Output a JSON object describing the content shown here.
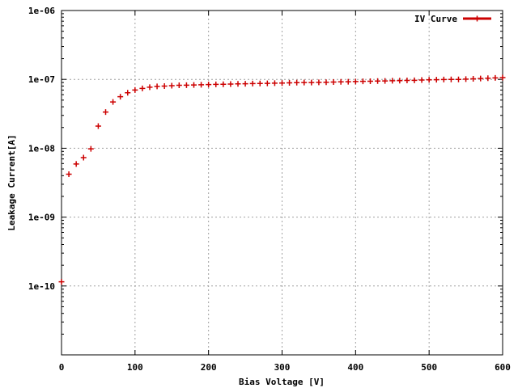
{
  "chart_data": {
    "type": "scatter",
    "title": "",
    "xlabel": "Bias Voltage [V]",
    "ylabel": "Leakage Current[A]",
    "xlim": [
      0,
      600
    ],
    "ylim": [
      1e-11,
      1e-06
    ],
    "yscale": "log",
    "grid": true,
    "legend_position": "top-right",
    "x_ticks": [
      0,
      100,
      200,
      300,
      400,
      500,
      600
    ],
    "x_tick_labels": [
      "0",
      "100",
      "200",
      "300",
      "400",
      "500",
      "600"
    ],
    "y_ticks": [
      1e-10,
      1e-09,
      1e-08,
      1e-07,
      1e-06
    ],
    "y_tick_labels": [
      "1e-10",
      "1e-09",
      "1e-08",
      "1e-07",
      "1e-06"
    ],
    "series": [
      {
        "name": "IV Curve",
        "color": "#cc0000",
        "marker": "plus",
        "x": [
          0,
          10,
          20,
          30,
          40,
          50,
          60,
          70,
          80,
          90,
          100,
          110,
          120,
          130,
          140,
          150,
          160,
          170,
          180,
          190,
          200,
          210,
          220,
          230,
          240,
          250,
          260,
          270,
          280,
          290,
          300,
          310,
          320,
          330,
          340,
          350,
          360,
          370,
          380,
          390,
          400,
          410,
          420,
          430,
          440,
          450,
          460,
          470,
          480,
          490,
          500,
          510,
          520,
          530,
          540,
          550,
          560,
          570,
          580,
          590,
          600
        ],
        "y": [
          1.15e-10,
          4.2e-09,
          5.9e-09,
          7.3e-09,
          9.8e-09,
          2.1e-08,
          3.35e-08,
          4.7e-08,
          5.6e-08,
          6.4e-08,
          7e-08,
          7.4e-08,
          7.7e-08,
          7.9e-08,
          8e-08,
          8.1e-08,
          8.2e-08,
          8.25e-08,
          8.3e-08,
          8.35e-08,
          8.4e-08,
          8.45e-08,
          8.5e-08,
          8.55e-08,
          8.6e-08,
          8.65e-08,
          8.7e-08,
          8.72e-08,
          8.75e-08,
          8.8e-08,
          8.85e-08,
          8.9e-08,
          8.95e-08,
          9e-08,
          9e-08,
          9.05e-08,
          9.1e-08,
          9.15e-08,
          9.2e-08,
          9.25e-08,
          9.3e-08,
          9.35e-08,
          9.4e-08,
          9.45e-08,
          9.5e-08,
          9.55e-08,
          9.6e-08,
          9.65e-08,
          9.7e-08,
          9.8e-08,
          9.85e-08,
          9.9e-08,
          9.95e-08,
          1e-07,
          1e-07,
          1.01e-07,
          1.02e-07,
          1.03e-07,
          1.04e-07,
          1.05e-07,
          1.06e-07
        ]
      }
    ]
  }
}
